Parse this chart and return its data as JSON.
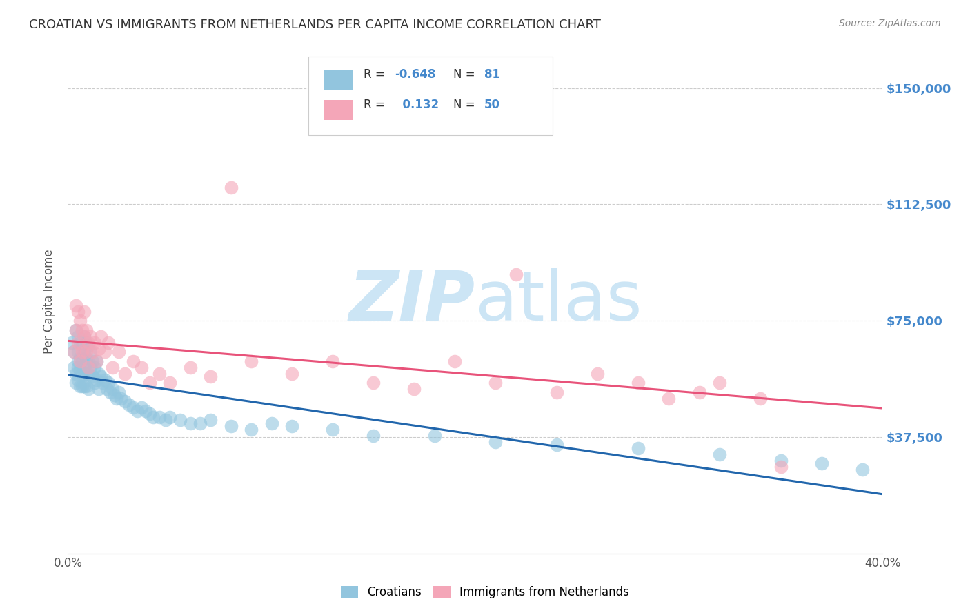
{
  "title": "CROATIAN VS IMMIGRANTS FROM NETHERLANDS PER CAPITA INCOME CORRELATION CHART",
  "source": "Source: ZipAtlas.com",
  "ylabel": "Per Capita Income",
  "ytick_labels": [
    "$37,500",
    "$75,000",
    "$112,500",
    "$150,000"
  ],
  "ytick_values": [
    37500,
    75000,
    112500,
    150000
  ],
  "ymin": 0,
  "ymax": 162500,
  "xmin": 0.0,
  "xmax": 0.4,
  "color_croatian": "#92c5de",
  "color_netherlands": "#f4a6b8",
  "color_line_croatian": "#2166ac",
  "color_line_netherlands": "#e8537a",
  "color_yticks": "#4488cc",
  "background_color": "#ffffff",
  "watermark_color": "#cce5f5",
  "croatian_x": [
    0.002,
    0.003,
    0.003,
    0.004,
    0.004,
    0.004,
    0.005,
    0.005,
    0.005,
    0.005,
    0.005,
    0.006,
    0.006,
    0.006,
    0.006,
    0.007,
    0.007,
    0.007,
    0.007,
    0.008,
    0.008,
    0.008,
    0.008,
    0.009,
    0.009,
    0.009,
    0.009,
    0.01,
    0.01,
    0.01,
    0.01,
    0.011,
    0.011,
    0.012,
    0.012,
    0.013,
    0.013,
    0.014,
    0.014,
    0.015,
    0.015,
    0.016,
    0.017,
    0.018,
    0.019,
    0.02,
    0.021,
    0.022,
    0.023,
    0.024,
    0.025,
    0.026,
    0.028,
    0.03,
    0.032,
    0.034,
    0.036,
    0.038,
    0.04,
    0.042,
    0.045,
    0.048,
    0.05,
    0.055,
    0.06,
    0.065,
    0.07,
    0.08,
    0.09,
    0.1,
    0.11,
    0.13,
    0.15,
    0.18,
    0.21,
    0.24,
    0.28,
    0.32,
    0.35,
    0.37,
    0.39
  ],
  "croatian_y": [
    68000,
    60000,
    65000,
    72000,
    58000,
    55000,
    70000,
    65000,
    62000,
    60000,
    56000,
    68000,
    63000,
    59000,
    54000,
    67000,
    63000,
    58000,
    54000,
    70000,
    65000,
    60000,
    54000,
    68000,
    63000,
    58000,
    54000,
    67000,
    62000,
    58000,
    53000,
    65000,
    60000,
    62000,
    57000,
    60000,
    55000,
    62000,
    56000,
    58000,
    53000,
    57000,
    55000,
    56000,
    53000,
    55000,
    52000,
    53000,
    51000,
    50000,
    52000,
    50000,
    49000,
    48000,
    47000,
    46000,
    47000,
    46000,
    45000,
    44000,
    44000,
    43000,
    44000,
    43000,
    42000,
    42000,
    43000,
    41000,
    40000,
    42000,
    41000,
    40000,
    38000,
    38000,
    36000,
    35000,
    34000,
    32000,
    30000,
    29000,
    27000
  ],
  "netherlands_x": [
    0.003,
    0.004,
    0.004,
    0.005,
    0.005,
    0.006,
    0.006,
    0.007,
    0.007,
    0.008,
    0.008,
    0.009,
    0.009,
    0.01,
    0.01,
    0.011,
    0.012,
    0.013,
    0.014,
    0.015,
    0.016,
    0.018,
    0.02,
    0.022,
    0.025,
    0.028,
    0.032,
    0.036,
    0.04,
    0.045,
    0.05,
    0.06,
    0.07,
    0.08,
    0.09,
    0.11,
    0.13,
    0.15,
    0.17,
    0.19,
    0.21,
    0.22,
    0.24,
    0.26,
    0.28,
    0.295,
    0.31,
    0.32,
    0.34,
    0.35
  ],
  "netherlands_y": [
    65000,
    80000,
    72000,
    78000,
    68000,
    75000,
    62000,
    72000,
    65000,
    78000,
    70000,
    65000,
    72000,
    68000,
    60000,
    70000,
    65000,
    68000,
    62000,
    66000,
    70000,
    65000,
    68000,
    60000,
    65000,
    58000,
    62000,
    60000,
    55000,
    58000,
    55000,
    60000,
    57000,
    118000,
    62000,
    58000,
    62000,
    55000,
    53000,
    62000,
    55000,
    90000,
    52000,
    58000,
    55000,
    50000,
    52000,
    55000,
    50000,
    28000
  ]
}
